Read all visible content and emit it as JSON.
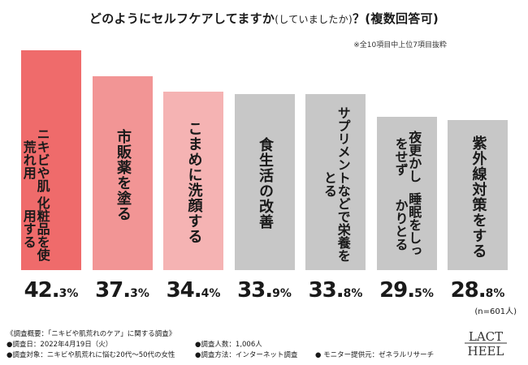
{
  "chart_data": {
    "type": "bar",
    "title": "どのようにセルフケアしてますか",
    "title_sub": "(していましたか)",
    "title_suffix": "？(複数回答可)",
    "note": "※全10項目中上位7項目抜粋",
    "categories": [
      "ニキビや肌荒れ用化粧品を使用する",
      "市販薬を塗る",
      "こまめに洗顔する",
      "食生活の改善",
      "サプリメントなどで栄養をとる",
      "夜更かしをせず睡眠をしっかりとる",
      "紫外線対策をする"
    ],
    "label_lines": [
      [
        "ニキビや肌荒れ用",
        "化粧品を使用する"
      ],
      [
        "市販薬を塗る"
      ],
      [
        "こまめに洗顔する"
      ],
      [
        "食生活の改善"
      ],
      [
        "サプリメントなどで栄養をとる"
      ],
      [
        "夜更かしをせず",
        "睡眠をしっかりとる"
      ],
      [
        "紫外線対策をする"
      ]
    ],
    "values": [
      42.3,
      37.3,
      34.4,
      33.9,
      33.8,
      29.5,
      28.8
    ],
    "value_labels": [
      [
        "42.",
        "3%"
      ],
      [
        "37.",
        "3%"
      ],
      [
        "34.",
        "4%"
      ],
      [
        "33.",
        "9%"
      ],
      [
        "33.",
        "8%"
      ],
      [
        "29.",
        "5%"
      ],
      [
        "28.",
        "8%"
      ]
    ],
    "colors": [
      "#ef6b6b",
      "#f29595",
      "#f5b3b3",
      "#c7c7c7",
      "#c7c7c7",
      "#c7c7c7",
      "#c7c7c7"
    ],
    "sample_size": "(n=601人)",
    "ylim": [
      0,
      45
    ]
  },
  "footer": {
    "overview": "《調査概要：「ニキビや肌荒れのケア」に関する調査》",
    "date": "●調査日：2022年4月19日（火）",
    "target": "●調査対象：ニキビや肌荒れに悩む20代〜50代の女性",
    "count": "●調査人数：1,006人",
    "method": "●調査方法：インターネット調査",
    "monitor": "● モニター提供元：ゼネラルリサーチ"
  },
  "logo": {
    "line1": "LACT",
    "line2": "HEEL"
  }
}
